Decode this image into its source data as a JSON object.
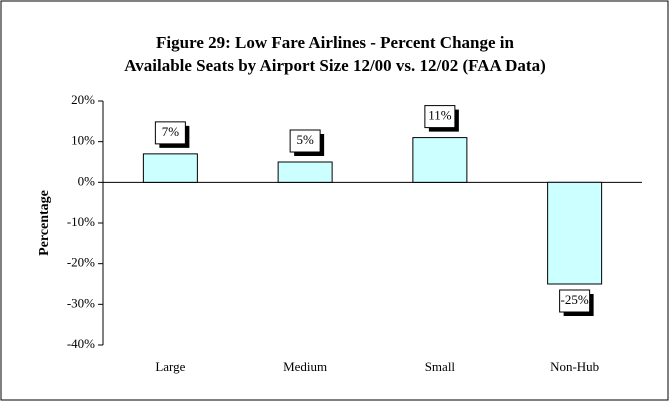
{
  "chart_data": {
    "type": "bar",
    "title": [
      "Figure 29:  Low Fare Airlines - Percent Change in",
      "Available Seats by Airport Size 12/00 vs. 12/02 (FAA Data)"
    ],
    "y_label": "Percentage",
    "categories": [
      "Large",
      "Medium",
      "Small",
      "Non-Hub"
    ],
    "values": [
      7,
      5,
      11,
      -25
    ],
    "value_labels": [
      "7%",
      "5%",
      "11%",
      "-25%"
    ],
    "color": "#ccffff",
    "ylim": [
      -40,
      20
    ],
    "yticks": [
      {
        "value": -40,
        "label": "-40%"
      },
      {
        "value": -30,
        "label": "-30%"
      },
      {
        "value": -20,
        "label": "-20%"
      },
      {
        "value": -10,
        "label": "-10%"
      },
      {
        "value": 0,
        "label": "0%"
      },
      {
        "value": 10,
        "label": "10%"
      },
      {
        "value": 20,
        "label": "20%"
      }
    ],
    "grid": false
  }
}
